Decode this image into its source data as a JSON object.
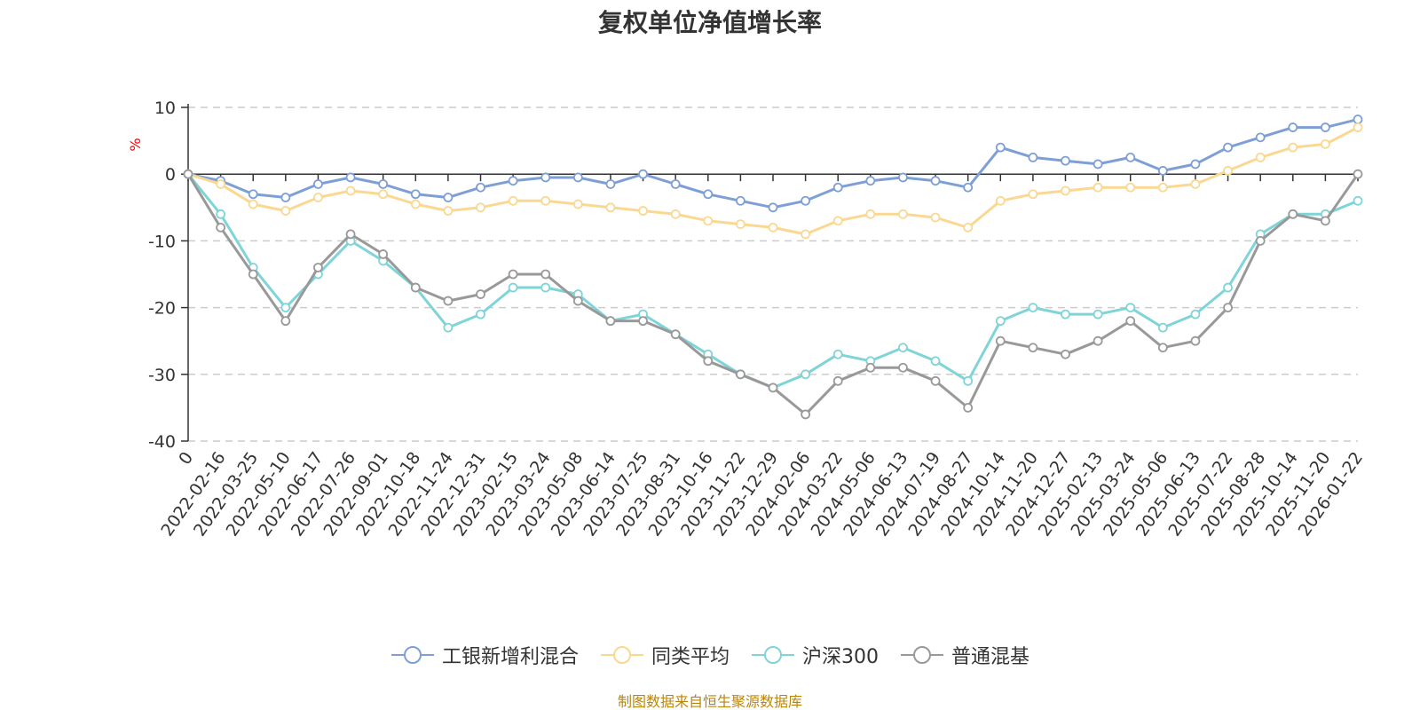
{
  "chart_data": {
    "type": "line",
    "title": "复权单位净值增长率",
    "ylabel": "%",
    "ylim": [
      -40,
      10
    ],
    "yticks": [
      10,
      0,
      -10,
      -20,
      -30,
      -40
    ],
    "grid": true,
    "legend_position": "bottom-center",
    "x": [
      "0",
      "2022-02-16",
      "2022-03-25",
      "2022-05-10",
      "2022-06-17",
      "2022-07-26",
      "2022-09-01",
      "2022-10-18",
      "2022-11-24",
      "2022-12-31",
      "2023-02-15",
      "2023-03-24",
      "2023-05-08",
      "2023-06-14",
      "2023-07-25",
      "2023-08-31",
      "2023-10-16",
      "2023-11-22",
      "2023-12-29",
      "2024-02-06",
      "2024-03-22",
      "2024-05-06",
      "2024-06-13",
      "2024-07-19",
      "2024-08-27",
      "2024-10-14",
      "2024-11-20",
      "2024-12-27",
      "2025-02-13",
      "2025-03-24",
      "2025-05-06",
      "2025-06-13",
      "2025-07-22",
      "2025-08-28",
      "2025-10-14",
      "2025-11-20",
      "2026-01-22"
    ],
    "series": [
      {
        "name": "工银新增利混合",
        "color": "#7e9fd6",
        "values": [
          0,
          -1,
          -3,
          -3.5,
          -1.5,
          -0.5,
          -1.5,
          -3,
          -3.5,
          -2,
          -1,
          -0.5,
          -0.5,
          -1.5,
          0,
          -1.5,
          -3,
          -4,
          -5,
          -4,
          -2,
          -1,
          -0.5,
          -1,
          -2,
          4,
          2.5,
          2,
          1.5,
          2.5,
          0.5,
          1.5,
          4,
          5.5,
          7,
          7,
          8.2
        ]
      },
      {
        "name": "同类平均",
        "color": "#fbd891",
        "values": [
          0,
          -1.5,
          -4.5,
          -5.5,
          -3.5,
          -2.5,
          -3,
          -4.5,
          -5.5,
          -5,
          -4,
          -4,
          -4.5,
          -5,
          -5.5,
          -6,
          -7,
          -7.5,
          -8,
          -9,
          -7,
          -6,
          -6,
          -6.5,
          -8,
          -4,
          -3,
          -2.5,
          -2,
          -2,
          -2,
          -1.5,
          0.5,
          2.5,
          4,
          4.5,
          7
        ]
      },
      {
        "name": "沪深300",
        "color": "#7fd4d8",
        "values": [
          0,
          -6,
          -14,
          -20,
          -15,
          -10,
          -13,
          -17,
          -23,
          -21,
          -17,
          -17,
          -18,
          -22,
          -21,
          -24,
          -27,
          -30,
          -32,
          -30,
          -27,
          -28,
          -26,
          -28,
          -31,
          -22,
          -20,
          -21,
          -21,
          -20,
          -23,
          -21,
          -17,
          -9,
          -6,
          -6,
          -4
        ]
      },
      {
        "name": "普通混基",
        "color": "#999999",
        "values": [
          0,
          -8,
          -15,
          -22,
          -14,
          -9,
          -12,
          -17,
          -19,
          -18,
          -15,
          -15,
          -19,
          -22,
          -22,
          -24,
          -28,
          -30,
          -32,
          -36,
          -31,
          -29,
          -29,
          -31,
          -35,
          -25,
          -26,
          -27,
          -25,
          -22,
          -26,
          -25,
          -20,
          -10,
          -6,
          -7,
          0
        ]
      }
    ]
  },
  "page": {
    "source": "制图数据来自恒生聚源数据库"
  }
}
